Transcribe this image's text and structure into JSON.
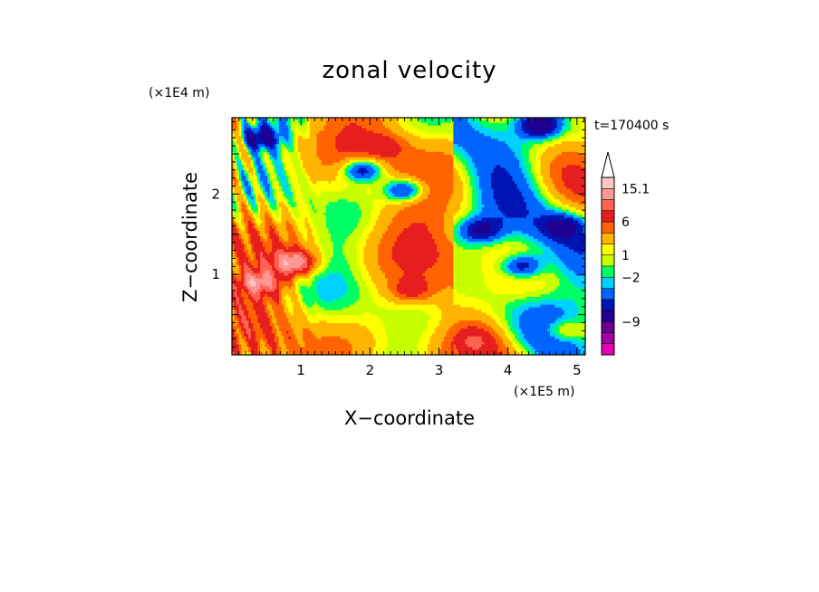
{
  "chart_data": {
    "type": "heatmap",
    "title": "zonal velocity",
    "xlabel": "X−coordinate",
    "ylabel": "Z−coordinate",
    "x_unit": "(×1E5 m)",
    "y_unit": "(×1E4 m)",
    "time_label": "t=170400 s",
    "xlim": [
      0,
      5.12
    ],
    "ylim": [
      0,
      2.95
    ],
    "xticks": [
      1,
      2,
      3,
      4,
      5
    ],
    "xtick_labels": [
      "1",
      "2",
      "3",
      "4",
      "5"
    ],
    "yticks": [
      1,
      2
    ],
    "ytick_labels": [
      "1",
      "2"
    ],
    "colorbar": {
      "colors": [
        "#e600b4",
        "#a000a0",
        "#6a0090",
        "#200090",
        "#0014b4",
        "#0064ff",
        "#00d2ff",
        "#00ff64",
        "#c8ff00",
        "#ffff00",
        "#ffb400",
        "#ff6400",
        "#e61e1e",
        "#ff6450",
        "#ff9696",
        "#ffc8c8"
      ],
      "labels": [
        {
          "text": "15.1",
          "index": 15
        },
        {
          "text": "6",
          "index": 12
        },
        {
          "text": "1",
          "index": 9
        },
        {
          "text": "−2",
          "index": 7
        },
        {
          "text": "−9",
          "index": 3
        }
      ]
    },
    "features": [
      {
        "x": 0.4,
        "z": 2.7,
        "u": -8
      },
      {
        "x": 1.9,
        "z": 2.3,
        "u": -9
      },
      {
        "x": 2.5,
        "z": 2.05,
        "u": -9
      },
      {
        "x": 4.45,
        "z": 2.85,
        "u": -9
      },
      {
        "x": 3.6,
        "z": 1.55,
        "u": -7
      },
      {
        "x": 4.2,
        "z": 1.1,
        "u": -8
      },
      {
        "x": 4.8,
        "z": 1.6,
        "u": -6
      },
      {
        "x": 0.9,
        "z": 1.15,
        "u": 12
      },
      {
        "x": 0.4,
        "z": 0.9,
        "u": 9
      },
      {
        "x": 2.6,
        "z": 0.8,
        "u": 5
      },
      {
        "x": 2.2,
        "z": 2.6,
        "u": 4
      },
      {
        "x": 3.5,
        "z": 0.2,
        "u": 3
      },
      {
        "x": 4.8,
        "z": 0.3,
        "u": 5
      }
    ]
  }
}
